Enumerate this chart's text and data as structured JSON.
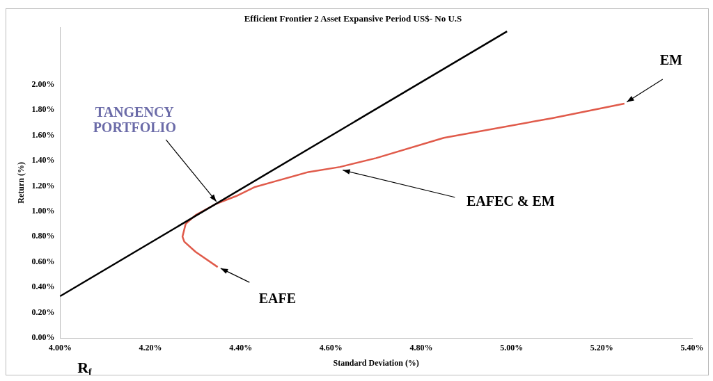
{
  "chart_data": {
    "type": "line",
    "title": "Efficient Frontier 2 Asset Expansive Period US$- No U.S",
    "xlabel": "Standard Deviation (%)",
    "ylabel": "Return (%)",
    "xlim": [
      4.0,
      5.4
    ],
    "ylim": [
      0,
      2.45
    ],
    "xticks": [
      {
        "value": 4.0,
        "label": "4.00%"
      },
      {
        "value": 4.2,
        "label": "4.20%"
      },
      {
        "value": 4.4,
        "label": "4.40%"
      },
      {
        "value": 4.6,
        "label": "4.60%"
      },
      {
        "value": 4.8,
        "label": "4.80%"
      },
      {
        "value": 5.0,
        "label": "5.00%"
      },
      {
        "value": 5.2,
        "label": "5.20%"
      },
      {
        "value": 5.4,
        "label": "5.40%"
      }
    ],
    "yticks": [
      {
        "value": 0,
        "label": "0.00%"
      },
      {
        "value": 0.2,
        "label": "0.20%"
      },
      {
        "value": 0.4,
        "label": "0.40%"
      },
      {
        "value": 0.6,
        "label": "0.60%"
      },
      {
        "value": 0.8,
        "label": "0.80%"
      },
      {
        "value": 1.0,
        "label": "1.00%"
      },
      {
        "value": 1.2,
        "label": "1.20%"
      },
      {
        "value": 1.4,
        "label": "1.40%"
      },
      {
        "value": 1.6,
        "label": "1.60%"
      },
      {
        "value": 1.8,
        "label": "1.80%"
      },
      {
        "value": 2.0,
        "label": "2.00%"
      }
    ],
    "grid": false,
    "legend": false,
    "marker": "none",
    "line_style": "solid",
    "series": [
      {
        "color": "#000000",
        "x": [
          4.0,
          4.99
        ],
        "values": [
          0.33,
          2.42
        ]
      },
      {
        "color": "#e05a4a",
        "x": [
          4.349,
          4.3,
          4.275,
          4.271,
          4.278,
          4.3,
          4.346,
          4.39,
          4.43,
          4.48,
          4.55,
          4.62,
          4.7,
          4.85,
          5.09,
          5.25
        ],
        "values": [
          0.56,
          0.68,
          0.76,
          0.8,
          0.9,
          0.97,
          1.06,
          1.12,
          1.19,
          1.24,
          1.31,
          1.35,
          1.42,
          1.58,
          1.735,
          1.85
        ]
      }
    ],
    "annotations": [
      {
        "text": "TANGENCY\nPORTFOLIO",
        "x": 4.35,
        "y": 1.06
      },
      {
        "text": "EAFE",
        "x": 4.35,
        "y": 0.56
      },
      {
        "text": "EAFEC & EM",
        "x": 4.62,
        "y": 1.33
      },
      {
        "text": "EM",
        "x": 5.25,
        "y": 1.85
      },
      "R$_{f}$"
    ]
  }
}
